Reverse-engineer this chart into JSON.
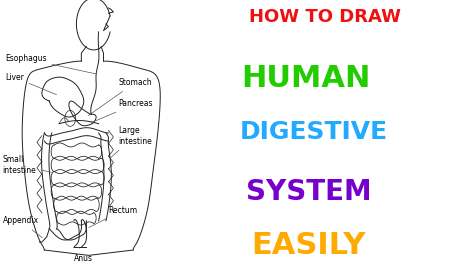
{
  "bg_color": "#ffffff",
  "body_color": "#222222",
  "title_line1": "HOW TO DRAW",
  "title_line1_color": "#ee1111",
  "title_line2": "HUMAN",
  "title_line2_color": "#22cc00",
  "title_line3": "DIGESTIVE",
  "title_line3_color": "#22aaff",
  "title_line4": "SYSTEM",
  "title_line4_color": "#7700cc",
  "title_line5": "EASILY",
  "title_line5_color": "#ffaa00",
  "label_fontsize": 5.5,
  "figsize": [
    4.74,
    2.66
  ],
  "dpi": 100
}
